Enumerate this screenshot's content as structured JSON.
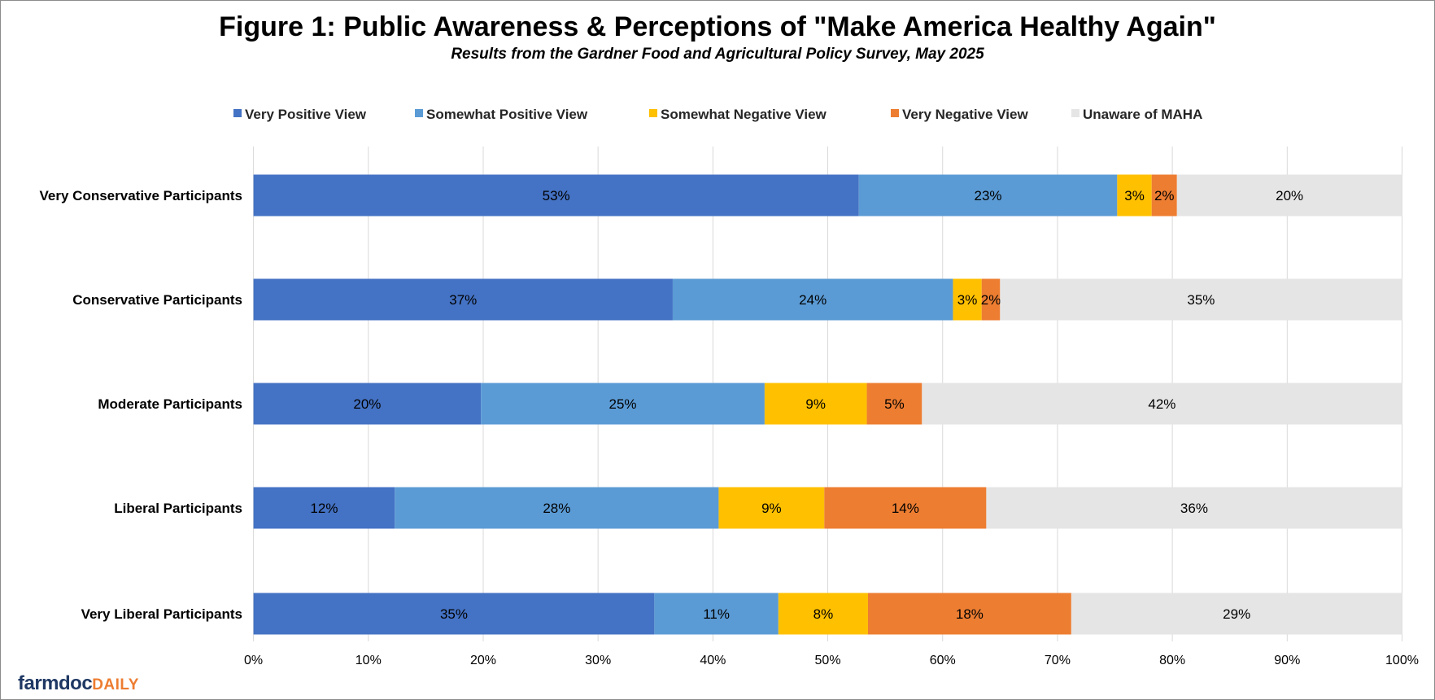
{
  "chart_data": {
    "type": "bar",
    "orientation": "horizontal",
    "stacked": true,
    "title": "Figure 1: Public Awareness & Perceptions of \"Make America Healthy Again\"",
    "subtitle": "Results from the Gardner Food and Agricultural Policy Survey, May 2025",
    "categories": [
      "Very Conservative Participants",
      "Conservative Participants",
      "Moderate Participants",
      "Liberal Participants",
      "Very Liberal Participants"
    ],
    "series": [
      {
        "name": "Very Positive View",
        "color": "#4472c4",
        "values": [
          52.7,
          36.5,
          19.8,
          12.3,
          34.9
        ],
        "labels": [
          "53%",
          "37%",
          "20%",
          "12%",
          "35%"
        ]
      },
      {
        "name": "Somewhat Positive View",
        "color": "#5b9bd5",
        "values": [
          22.5,
          24.4,
          24.7,
          28.2,
          10.8
        ],
        "labels": [
          "23%",
          "24%",
          "25%",
          "28%",
          "11%"
        ]
      },
      {
        "name": "Somewhat Negative View",
        "color": "#ffc000",
        "values": [
          3.0,
          2.5,
          8.9,
          9.2,
          7.8
        ],
        "labels": [
          "3%",
          "3%",
          "9%",
          "9%",
          "8%"
        ]
      },
      {
        "name": "Very Negative View",
        "color": "#ed7d31",
        "values": [
          2.2,
          1.6,
          4.8,
          14.1,
          17.7
        ],
        "labels": [
          "2%",
          "2%",
          "5%",
          "14%",
          "18%"
        ]
      },
      {
        "name": "Unaware of MAHA",
        "color": "#e5e5e5",
        "values": [
          19.6,
          35.0,
          41.8,
          36.2,
          28.8
        ],
        "labels": [
          "20%",
          "35%",
          "42%",
          "36%",
          "29%"
        ]
      }
    ],
    "xlim": [
      0,
      100
    ],
    "xticks": [
      "0%",
      "10%",
      "20%",
      "30%",
      "40%",
      "50%",
      "60%",
      "70%",
      "80%",
      "90%",
      "100%"
    ],
    "grid": true,
    "legend_position": "top"
  },
  "logo": {
    "part1": "farmdoc",
    "part2": "DAILY"
  }
}
